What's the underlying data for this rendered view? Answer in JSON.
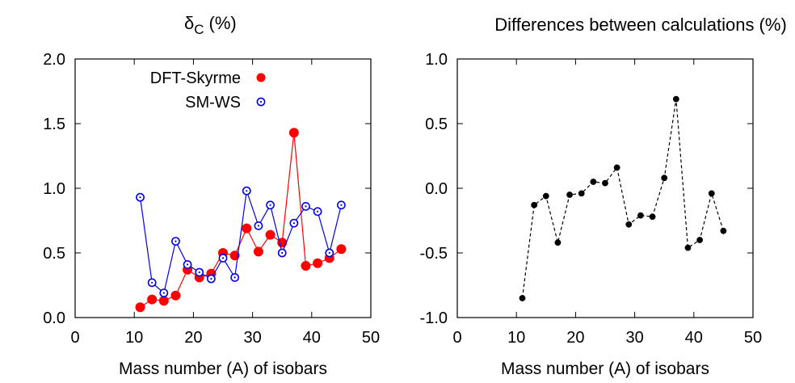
{
  "chart_data": [
    {
      "type": "scatter",
      "title_main": "δ",
      "title_sub": "C",
      "title_suffix": "(%)",
      "xlabel": "Mass number (A) of isobars",
      "ylabel": "",
      "xlim": [
        0,
        50
      ],
      "ylim": [
        0.0,
        2.0
      ],
      "xticks": [
        "0",
        "10",
        "20",
        "30",
        "40",
        "50"
      ],
      "yticks": [
        "0.0",
        "0.5",
        "1.0",
        "1.5",
        "2.0"
      ],
      "legend_position": "top-right",
      "series": [
        {
          "name": "DFT-Skyrme",
          "color": "#ff0000",
          "marker": "filled-circle",
          "line": "solid",
          "x": [
            11,
            13,
            15,
            17,
            19,
            21,
            23,
            25,
            27,
            29,
            31,
            33,
            35,
            37,
            39,
            41,
            43,
            45
          ],
          "y": [
            0.08,
            0.14,
            0.13,
            0.17,
            0.37,
            0.31,
            0.34,
            0.5,
            0.48,
            0.69,
            0.51,
            0.64,
            0.58,
            1.43,
            0.4,
            0.42,
            0.46,
            0.53
          ]
        },
        {
          "name": "SM-WS",
          "color": "#0000ee",
          "marker": "open-circle-dot",
          "line": "solid",
          "x": [
            11,
            13,
            15,
            17,
            19,
            21,
            23,
            25,
            27,
            29,
            31,
            33,
            35,
            37,
            39,
            41,
            43,
            45
          ],
          "y": [
            0.93,
            0.27,
            0.19,
            0.59,
            0.41,
            0.35,
            0.3,
            0.46,
            0.31,
            0.98,
            0.71,
            0.87,
            0.5,
            0.73,
            0.86,
            0.82,
            0.5,
            0.87
          ]
        }
      ]
    },
    {
      "type": "line",
      "title": "Differences between calculations (%)",
      "xlabel": "Mass number (A) of isobars",
      "ylabel": "",
      "xlim": [
        0,
        50
      ],
      "ylim": [
        -1.0,
        1.0
      ],
      "xticks": [
        "0",
        "10",
        "20",
        "30",
        "40",
        "50"
      ],
      "yticks": [
        "-1.0",
        "-0.5",
        "0.0",
        "0.5",
        "1.0"
      ],
      "series": [
        {
          "color": "#000000",
          "marker": "filled-circle",
          "line": "dashed",
          "x": [
            11,
            13,
            15,
            17,
            19,
            21,
            23,
            25,
            27,
            29,
            31,
            33,
            35,
            37,
            39,
            41,
            43,
            45
          ],
          "y": [
            -0.85,
            -0.13,
            -0.06,
            -0.42,
            -0.05,
            -0.04,
            0.05,
            0.04,
            0.16,
            -0.28,
            -0.21,
            -0.22,
            0.08,
            0.69,
            -0.46,
            -0.4,
            -0.04,
            -0.33
          ]
        }
      ]
    }
  ]
}
